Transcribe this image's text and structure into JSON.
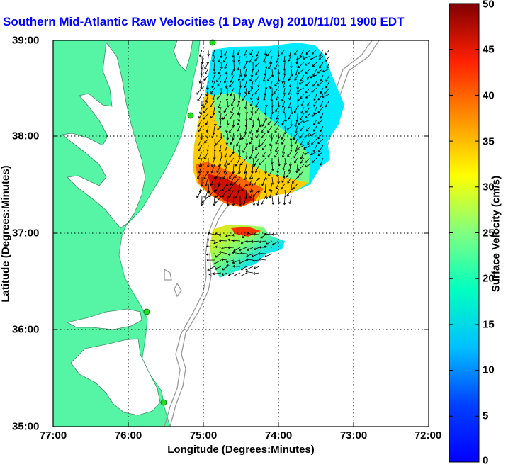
{
  "title": "Southern Mid-Atlantic Raw Velocities (1 Day Avg) 2010/11/01 1900 EDT",
  "x_axis": {
    "label": "Longitude (Degrees:Minutes)",
    "ticks": [
      "77:00",
      "76:00",
      "75:00",
      "74:00",
      "73:00",
      "72:00"
    ]
  },
  "y_axis": {
    "label": "Latitude (Degrees:Minutes)",
    "ticks": [
      "39:00",
      "38:00",
      "37:00",
      "36:00",
      "35:00"
    ]
  },
  "colorbar": {
    "label": "Surface Velocity (cm/s)",
    "ticks": [
      "50",
      "45",
      "40",
      "35",
      "30",
      "25",
      "20",
      "15",
      "10",
      "5",
      "0"
    ],
    "range": [
      0,
      50
    ]
  },
  "colors": {
    "land": "#55f5a5",
    "water": "#ffffff",
    "bathymetry": "#999999",
    "title": "#0000ff",
    "station": "#22dd22"
  },
  "stations": [
    "station-1",
    "station-2",
    "station-3",
    "station-4"
  ]
}
